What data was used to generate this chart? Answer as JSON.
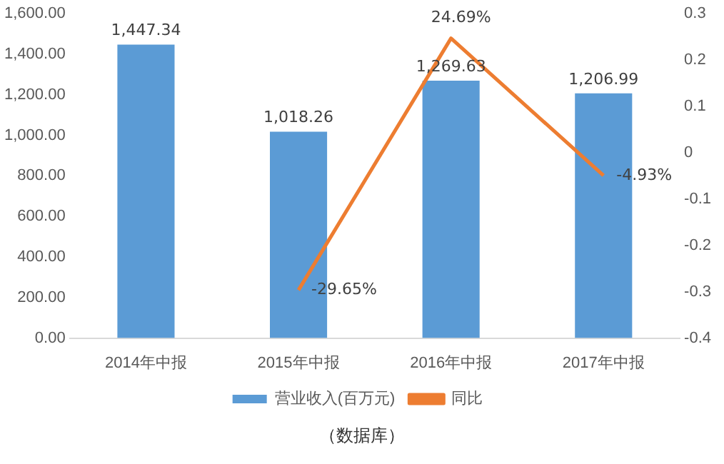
{
  "chart_data": {
    "type": "bar",
    "categories": [
      "2014年中报",
      "2015年中报",
      "2016年中报",
      "2017年中报"
    ],
    "series": [
      {
        "name": "营业收入(百万元)",
        "color": "#5b9bd5",
        "values": [
          1447.34,
          1018.26,
          1269.63,
          1206.99
        ],
        "value_labels": [
          "1,447.34",
          "1,018.26",
          "1,269.63",
          "1,206.99"
        ]
      },
      {
        "name": "同比",
        "type": "line",
        "axis": "y2",
        "color": "#ed7d31",
        "marker": "none",
        "values": [
          null,
          -0.2965,
          0.2469,
          -0.0493
        ],
        "value_labels": [
          null,
          "-29.65%",
          "24.69%",
          "-4.93%"
        ]
      }
    ],
    "ylim": [
      0,
      1600
    ],
    "yticks": [
      {
        "value": 0,
        "label": "0.00"
      },
      {
        "value": 200,
        "label": "200.00"
      },
      {
        "value": 400,
        "label": "400.00"
      },
      {
        "value": 600,
        "label": "600.00"
      },
      {
        "value": 800,
        "label": "800.00"
      },
      {
        "value": 1000,
        "label": "1,000.00"
      },
      {
        "value": 1200,
        "label": "1,200.00"
      },
      {
        "value": 1400,
        "label": "1,400.00"
      },
      {
        "value": 1600,
        "label": "1,600.00"
      }
    ],
    "y2lim": [
      -0.4,
      0.3
    ],
    "y2ticks": [
      -0.4,
      -0.3,
      -0.2,
      -0.1,
      0,
      0.1,
      0.2,
      0.3
    ],
    "legend": "bottom",
    "annotations": [
      "（数据库）"
    ]
  }
}
